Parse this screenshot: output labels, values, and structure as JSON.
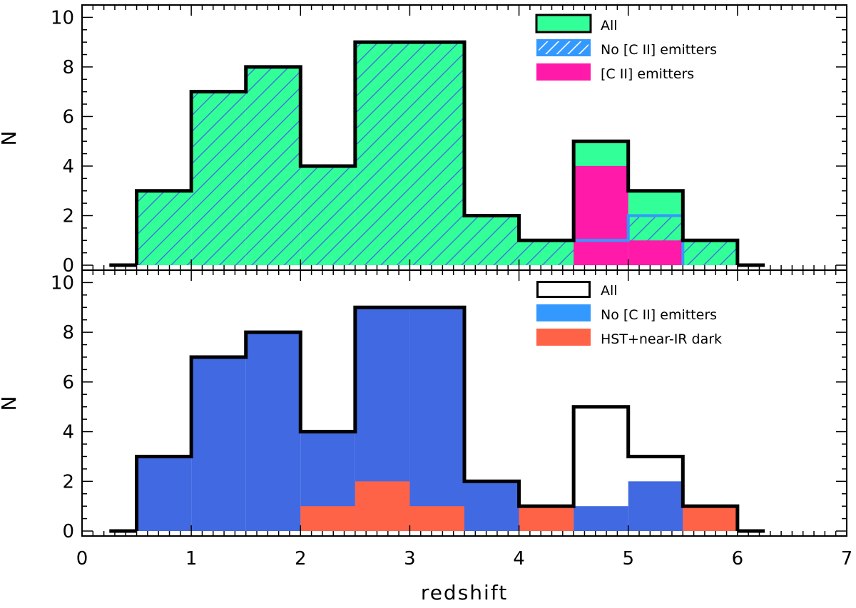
{
  "colors": {
    "all_fill": "#33ff99",
    "hatch_line": "#4169e1",
    "cii_fill": "#ff1aaa",
    "no_cii_fill": "#4169e1",
    "no_cii_legend": "#3399ff",
    "dark_fill": "#ff6347",
    "outline": "#000000"
  },
  "chart_data": [
    {
      "type": "histogram",
      "panel": "top",
      "xlabel": "",
      "ylabel": "N",
      "xlim": [
        0,
        7
      ],
      "ylim": [
        -0.2,
        10.5
      ],
      "y_ticks": [
        "0",
        "2",
        "4",
        "6",
        "8",
        "10"
      ],
      "bin_edges": [
        0.5,
        1.0,
        1.5,
        2.0,
        2.5,
        3.0,
        3.5,
        4.0,
        4.5,
        5.0,
        5.5,
        6.0
      ],
      "series": [
        {
          "name": "All",
          "style": "solid",
          "values": [
            3,
            7,
            8,
            4,
            9,
            9,
            2,
            1,
            5,
            3,
            1
          ]
        },
        {
          "name": "No [C II] emitters",
          "style": "hatched",
          "values": [
            3,
            7,
            8,
            4,
            9,
            9,
            2,
            1,
            1,
            2,
            1
          ]
        },
        {
          "name": "[C II] emitters",
          "style": "solid",
          "values": [
            0,
            0,
            0,
            0,
            0,
            0,
            0,
            0,
            4,
            1,
            0
          ]
        }
      ],
      "legend": [
        "All",
        "No [C II] emitters",
        "[C II] emitters"
      ],
      "legend_position": "top-right"
    },
    {
      "type": "histogram",
      "panel": "bottom",
      "xlabel": "redshift",
      "ylabel": "N",
      "xlim": [
        0,
        7
      ],
      "ylim": [
        -0.2,
        10.5
      ],
      "x_ticks": [
        "0",
        "1",
        "2",
        "3",
        "4",
        "5",
        "6",
        "7"
      ],
      "y_ticks": [
        "0",
        "2",
        "4",
        "6",
        "8",
        "10"
      ],
      "bin_edges": [
        0.5,
        1.0,
        1.5,
        2.0,
        2.5,
        3.0,
        3.5,
        4.0,
        4.5,
        5.0,
        5.5,
        6.0
      ],
      "series": [
        {
          "name": "All",
          "style": "outline",
          "values": [
            3,
            7,
            8,
            4,
            9,
            9,
            2,
            1,
            5,
            3,
            1
          ]
        },
        {
          "name": "No [C II] emitters",
          "style": "solid",
          "values": [
            3,
            7,
            8,
            4,
            9,
            9,
            2,
            1,
            1,
            2,
            1
          ]
        },
        {
          "name": "HST+near-IR dark",
          "style": "solid",
          "values": [
            0,
            0,
            0,
            1,
            2,
            1,
            0,
            1,
            0,
            0,
            1
          ]
        }
      ],
      "legend": [
        "All",
        "No [C II] emitters",
        "HST+near-IR dark"
      ],
      "legend_position": "top-right"
    }
  ]
}
